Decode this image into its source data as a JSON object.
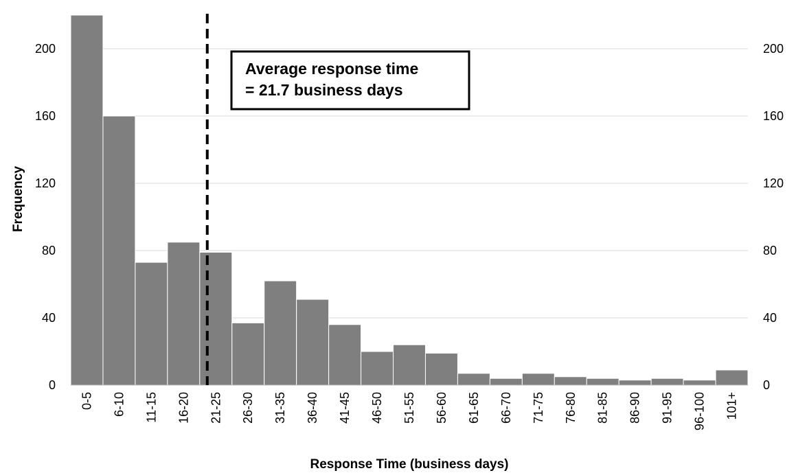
{
  "chart_data": {
    "type": "bar",
    "categories": [
      "0-5",
      "6-10",
      "11-15",
      "16-20",
      "21-25",
      "26-30",
      "31-35",
      "36-40",
      "41-45",
      "46-50",
      "51-55",
      "56-60",
      "61-65",
      "66-70",
      "71-75",
      "76-80",
      "81-85",
      "86-90",
      "91-95",
      "96-100",
      "101+"
    ],
    "values": [
      220,
      160,
      73,
      85,
      79,
      37,
      62,
      51,
      36,
      20,
      24,
      19,
      7,
      4,
      7,
      5,
      4,
      3,
      4,
      3,
      9
    ],
    "xlabel": "Response Time (business days)",
    "ylabel": "Frequency",
    "ylim": [
      0,
      220
    ],
    "yticks": [
      0,
      40,
      80,
      120,
      160,
      200
    ],
    "secondary_y_axis": true,
    "grid": "horizontal",
    "bar_color": "#7f7f7f",
    "reference_line": {
      "x": 21.7,
      "style": "dashed",
      "color": "#000000"
    },
    "annotation": {
      "line1": "Average response time",
      "line2": "= 21.7 business days"
    }
  }
}
